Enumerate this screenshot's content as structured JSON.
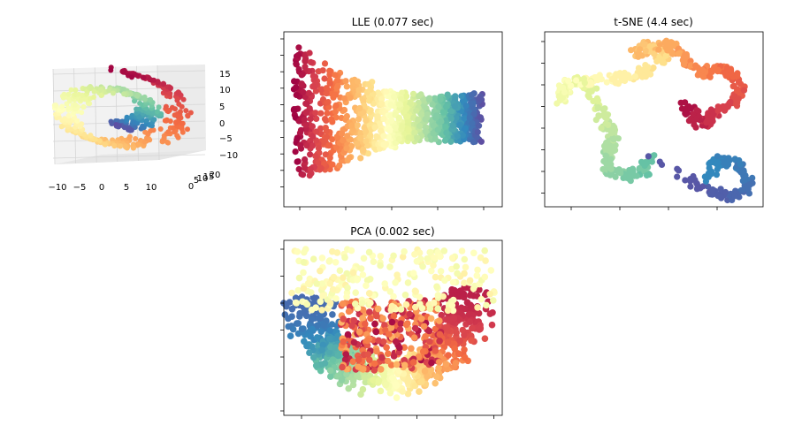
{
  "colormap": [
    "#9e0142",
    "#d53e4f",
    "#f46d43",
    "#fdae61",
    "#fee08b",
    "#ffffbf",
    "#e6f598",
    "#abdda4",
    "#66c2a5",
    "#3288bd",
    "#5e4fa2"
  ],
  "chart_data": [
    {
      "type": "scatter",
      "kind": "3d",
      "title": "",
      "xticks": [
        "−10",
        "−5",
        "0",
        "5",
        "10"
      ],
      "yticks": [
        "0",
        "5",
        "10",
        "15",
        "20"
      ],
      "zticks": [
        "15",
        "10",
        "5",
        "0",
        "−5",
        "−10"
      ],
      "xlim": [
        -10,
        12
      ],
      "ylim": [
        0,
        20
      ],
      "zlim": [
        -11,
        15
      ],
      "grid": true
    },
    {
      "type": "scatter",
      "title": "LLE (0.077 sec)",
      "ticklabels": false,
      "grid": false
    },
    {
      "type": "scatter",
      "title": "t-SNE (4.4 sec)",
      "ticklabels": false,
      "grid": false
    },
    {
      "type": "scatter",
      "title": "PCA (0.002 sec)",
      "ticklabels": false,
      "grid": false
    }
  ]
}
